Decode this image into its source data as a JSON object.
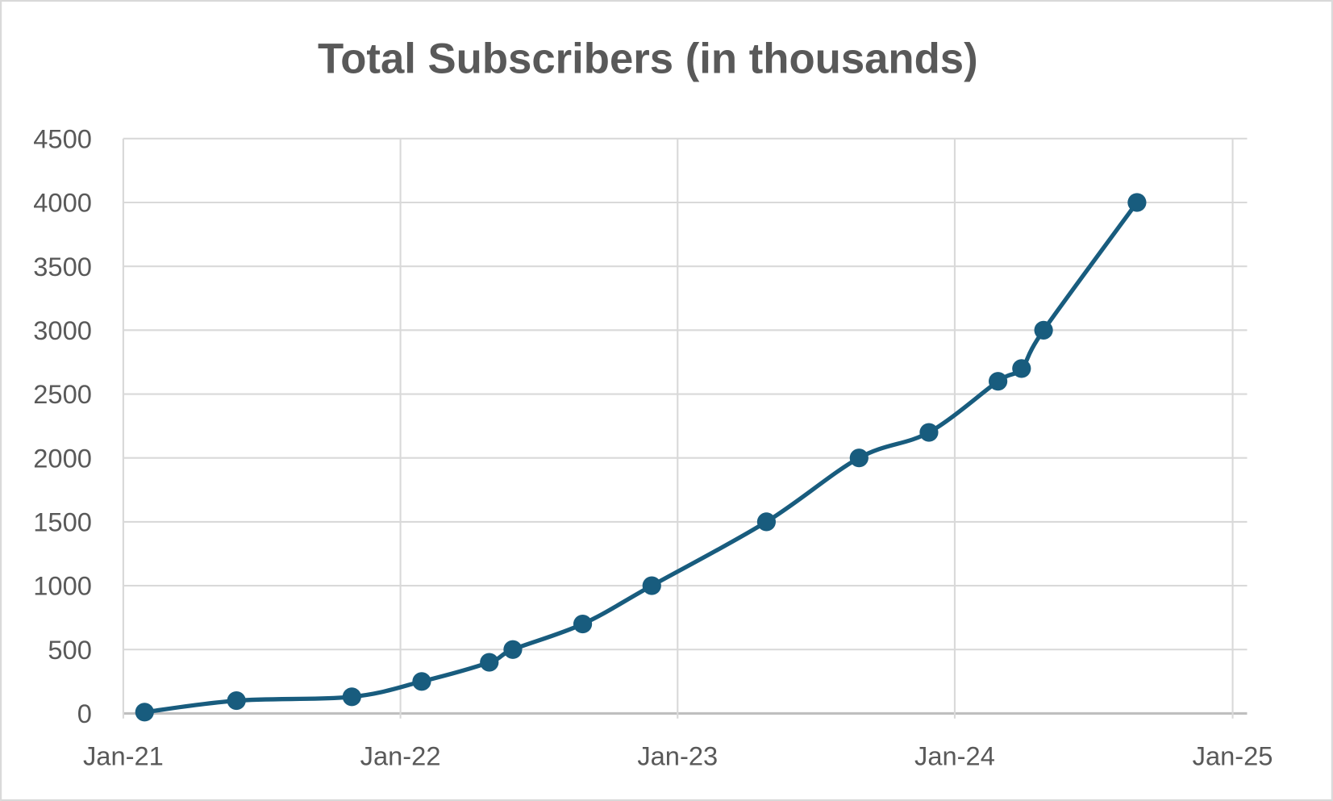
{
  "chart_data": {
    "type": "line",
    "title": "Total Subscribers (in thousands)",
    "xlabel": "",
    "ylabel": "",
    "x_ticks": [
      {
        "label": "Jan-21",
        "date": "2021-01-01"
      },
      {
        "label": "Jan-22",
        "date": "2022-01-01"
      },
      {
        "label": "Jan-23",
        "date": "2023-01-01"
      },
      {
        "label": "Jan-24",
        "date": "2024-01-01"
      },
      {
        "label": "Jan-25",
        "date": "2025-01-01"
      }
    ],
    "xlim": [
      "2021-01-01",
      "2025-01-01"
    ],
    "ylim": [
      0,
      4500
    ],
    "y_ticks": [
      0,
      500,
      1000,
      1500,
      2000,
      2500,
      3000,
      3500,
      4000,
      4500
    ],
    "grid": true,
    "smooth": true,
    "series": [
      {
        "name": "Total Subscribers",
        "color": "#185C7E",
        "points": [
          {
            "x": "2021-01-29",
            "y": 10
          },
          {
            "x": "2021-05-30",
            "y": 100
          },
          {
            "x": "2021-10-29",
            "y": 130
          },
          {
            "x": "2022-01-29",
            "y": 250
          },
          {
            "x": "2022-04-28",
            "y": 400
          },
          {
            "x": "2022-05-29",
            "y": 500
          },
          {
            "x": "2022-08-29",
            "y": 700
          },
          {
            "x": "2022-11-28",
            "y": 1000
          },
          {
            "x": "2023-04-28",
            "y": 1500
          },
          {
            "x": "2023-08-28",
            "y": 2000
          },
          {
            "x": "2023-11-28",
            "y": 2200
          },
          {
            "x": "2024-02-27",
            "y": 2600
          },
          {
            "x": "2024-03-29",
            "y": 2700
          },
          {
            "x": "2024-04-27",
            "y": 3000
          },
          {
            "x": "2024-08-28",
            "y": 4000
          }
        ]
      }
    ]
  }
}
